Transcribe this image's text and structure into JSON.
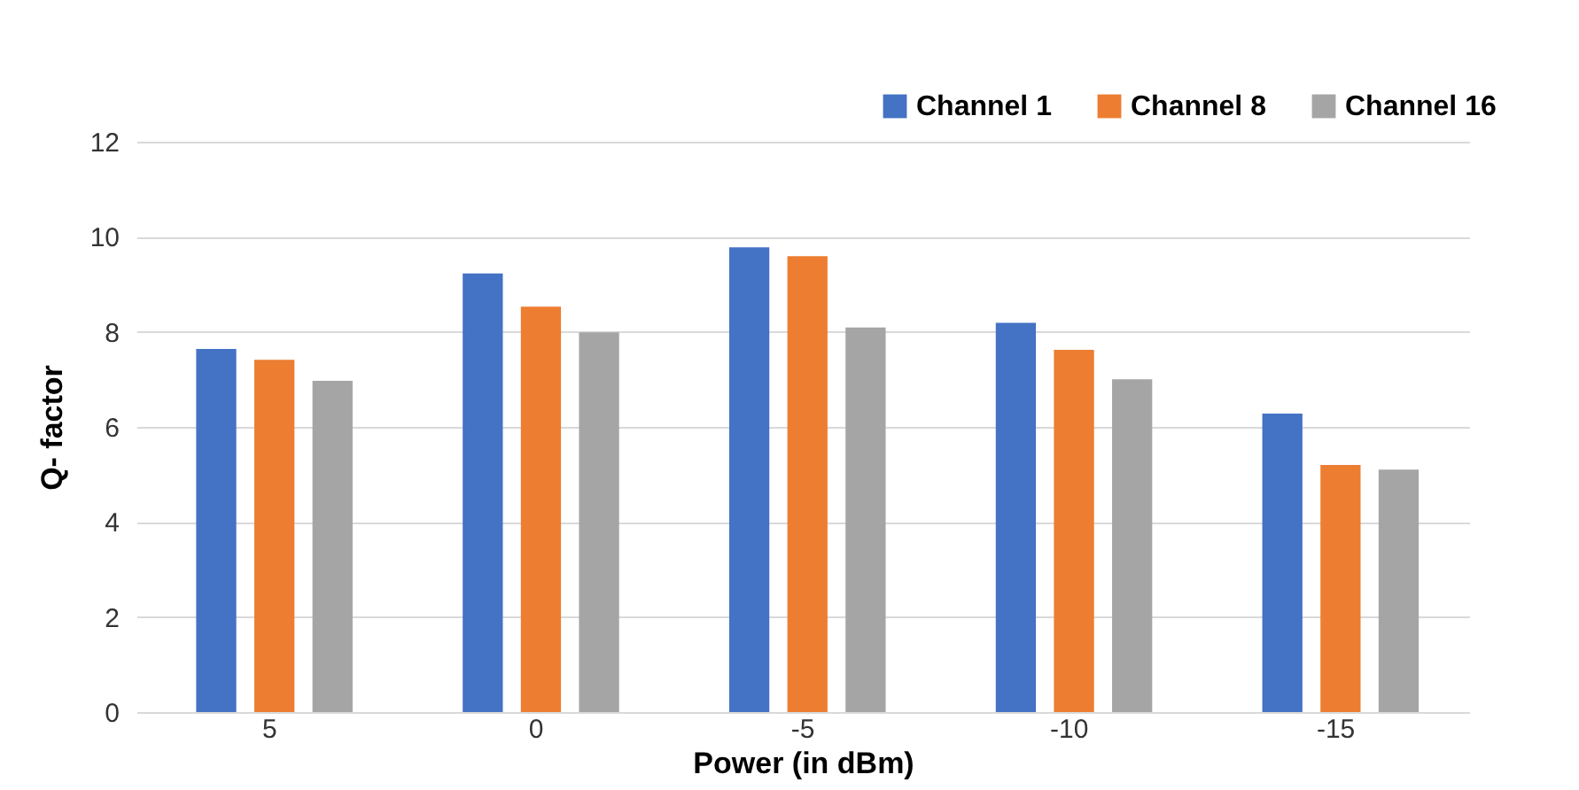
{
  "chart_data": {
    "type": "bar",
    "xlabel": "Power (in dBm)",
    "ylabel": "Q- factor",
    "categories": [
      "5",
      "0",
      "-5",
      "-10",
      "-15"
    ],
    "series": [
      {
        "name": "Channel 1",
        "color": "#4472c4",
        "values": [
          7.64,
          9.23,
          9.78,
          8.19,
          6.28
        ]
      },
      {
        "name": "Channel 8",
        "color": "#ed7d31",
        "values": [
          7.41,
          8.53,
          9.59,
          7.62,
          5.2
        ]
      },
      {
        "name": "Channel 16",
        "color": "#a5a5a5",
        "values": [
          6.97,
          7.99,
          8.09,
          7.0,
          5.1
        ]
      }
    ],
    "ylim": [
      0,
      12
    ],
    "yticks": [
      0,
      2,
      4,
      6,
      8,
      10,
      12
    ],
    "grid": "y",
    "legend": "top right"
  }
}
